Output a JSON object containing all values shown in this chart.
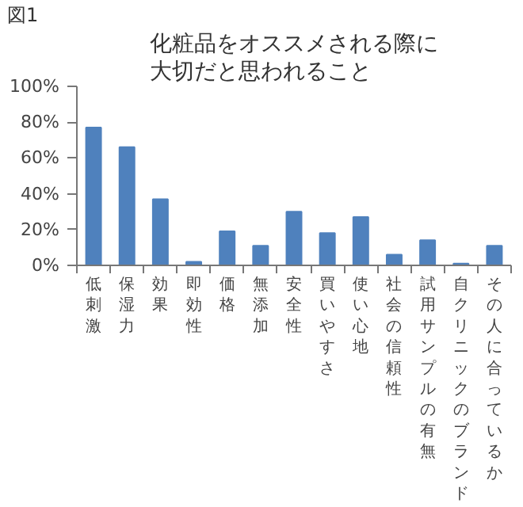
{
  "chart_data": {
    "type": "bar",
    "title": "化粧品をオススメされる際に大切だと思われること",
    "annotations": [
      "図1"
    ],
    "categories": [
      "低刺激",
      "保湿力",
      "効果",
      "即効性",
      "価格",
      "無添加",
      "安全性",
      "買いやすさ",
      "使い心地",
      "社会の信頼性",
      "試用サンプルの有無",
      "自クリニックのブランド",
      "その人に合っているか"
    ],
    "values": [
      77,
      66,
      37,
      2,
      19,
      11,
      30,
      18,
      27,
      6,
      14,
      1,
      11
    ],
    "color": "#4f81bd",
    "ylim": [
      0,
      100
    ],
    "yticks": [
      {
        "value": 0,
        "label": "0%"
      },
      {
        "value": 20,
        "label": "20%"
      },
      {
        "value": 40,
        "label": "40%"
      },
      {
        "value": 60,
        "label": "60%"
      },
      {
        "value": 80,
        "label": "80%"
      },
      {
        "value": 100,
        "label": "100%"
      }
    ],
    "grid": false
  }
}
